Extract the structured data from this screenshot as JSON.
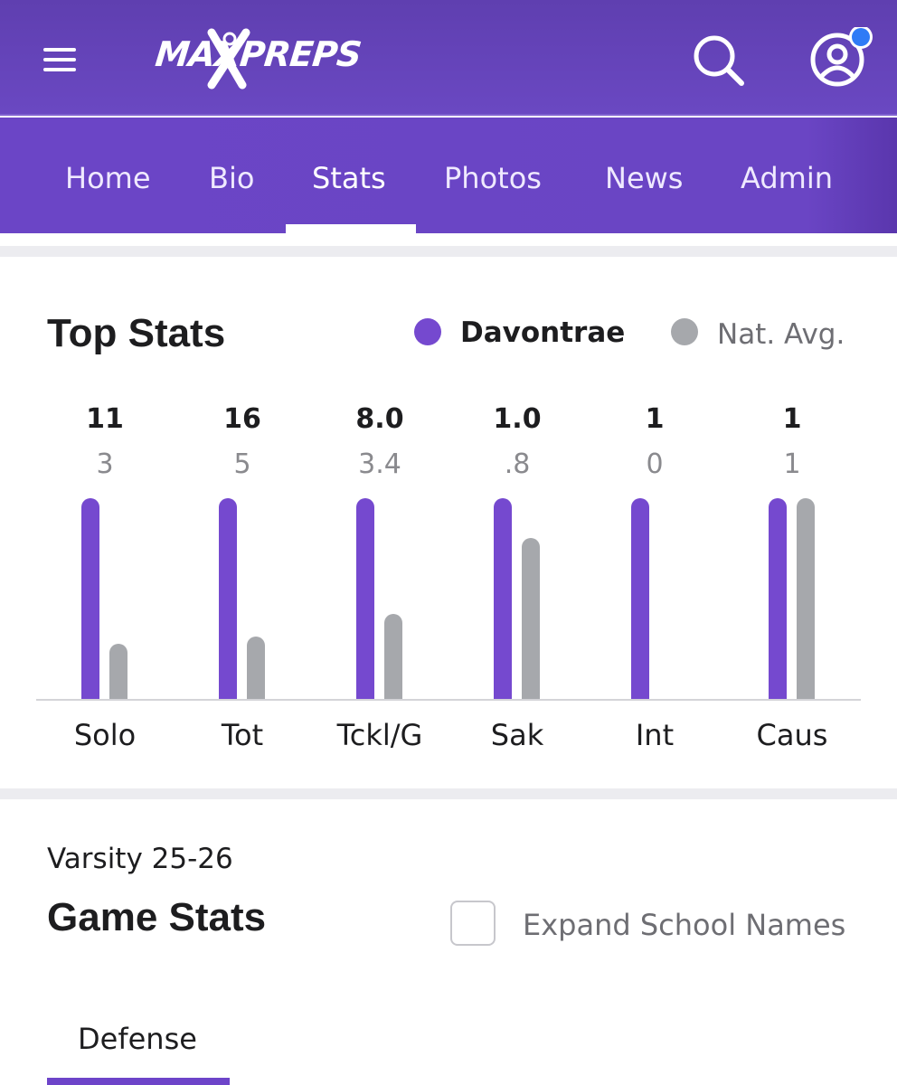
{
  "header": {
    "logo_text": "MAXPREPS",
    "colors": {
      "header_bg": "#6a48c2",
      "accent": "#7549cf",
      "notification_dot": "#2f7bf6"
    }
  },
  "nav": {
    "tabs": [
      {
        "label": "Home"
      },
      {
        "label": "Bio"
      },
      {
        "label": "Stats",
        "active": true
      },
      {
        "label": "Photos"
      },
      {
        "label": "News"
      },
      {
        "label": "Admin"
      }
    ]
  },
  "top_stats": {
    "title": "Top Stats",
    "legend": {
      "player": "Davontrae",
      "avg": "Nat. Avg."
    }
  },
  "chart_data": {
    "type": "bar",
    "title": "Top Stats",
    "categories": [
      "Solo",
      "Tot",
      "Tckl/G",
      "Sak",
      "Int",
      "Caus"
    ],
    "series": [
      {
        "name": "Davontrae",
        "color": "#7549cf",
        "values": [
          11,
          16,
          8.0,
          1.0,
          1,
          1
        ],
        "labels": [
          "11",
          "16",
          "8.0",
          "1.0",
          "1",
          "1"
        ]
      },
      {
        "name": "Nat. Avg.",
        "color": "#a6a8ac",
        "values": [
          3,
          5,
          3.4,
          0.8,
          0,
          1
        ],
        "labels": [
          "3",
          "5",
          "3.4",
          ".8",
          "0",
          "1"
        ]
      }
    ],
    "grid": false,
    "legend_position": "top-right"
  },
  "game_stats": {
    "season": "Varsity 25-26",
    "title": "Game Stats",
    "expand_label": "Expand School Names",
    "expand_checked": false,
    "tab": "Defense"
  }
}
